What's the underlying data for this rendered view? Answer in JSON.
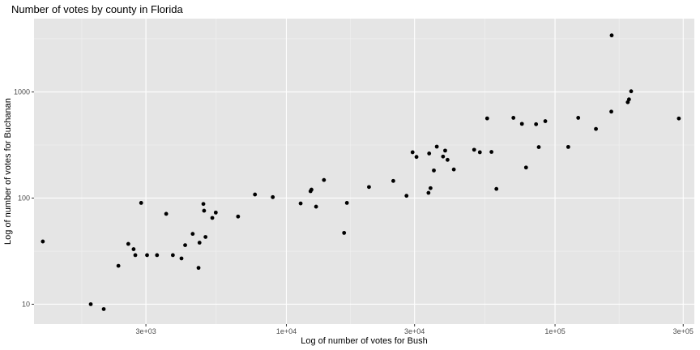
{
  "colors": {
    "panel": "#e5e5e5",
    "grid_major": "#ffffff",
    "grid_minor": "#f2f2f2",
    "point": "#000000",
    "tick": "#333333"
  },
  "chart_data": {
    "type": "scatter",
    "title": "Number of votes by county in Florida",
    "xlabel": "Log of number of votes for Bush",
    "ylabel": "Log of number of votes for Buchanan",
    "x_scale": "log10",
    "y_scale": "log10",
    "xlim": [
      1150,
      330000
    ],
    "ylim": [
      6.5,
      4900
    ],
    "grid": true,
    "x_ticks": [
      {
        "value": 3000,
        "label": "3e+03"
      },
      {
        "value": 10000,
        "label": "1e+04"
      },
      {
        "value": 30000,
        "label": "3e+04"
      },
      {
        "value": 100000,
        "label": "1e+05"
      },
      {
        "value": 300000,
        "label": "3e+05"
      }
    ],
    "y_ticks": [
      {
        "value": 10,
        "label": "10"
      },
      {
        "value": 100,
        "label": "100"
      },
      {
        "value": 1000,
        "label": "1000"
      }
    ],
    "x_minor_grid": [
      1732,
      5477,
      17320,
      54770,
      173200
    ],
    "y_minor_grid": [
      31.6,
      316,
      3162
    ],
    "points": [
      [
        1240,
        39
      ],
      [
        1870,
        10
      ],
      [
        2090,
        9
      ],
      [
        2370,
        23
      ],
      [
        2580,
        37
      ],
      [
        2700,
        33
      ],
      [
        2740,
        29
      ],
      [
        3030,
        29
      ],
      [
        2880,
        90
      ],
      [
        3300,
        29
      ],
      [
        3570,
        71
      ],
      [
        3780,
        29
      ],
      [
        4070,
        27
      ],
      [
        4200,
        36
      ],
      [
        4480,
        46
      ],
      [
        4710,
        22
      ],
      [
        4750,
        38
      ],
      [
        4910,
        88
      ],
      [
        4940,
        76
      ],
      [
        5000,
        43
      ],
      [
        5300,
        65
      ],
      [
        5460,
        73
      ],
      [
        6610,
        67
      ],
      [
        7640,
        108
      ],
      [
        8900,
        102
      ],
      [
        11300,
        89
      ],
      [
        12300,
        116
      ],
      [
        12400,
        120
      ],
      [
        12900,
        83
      ],
      [
        13800,
        148
      ],
      [
        16400,
        47
      ],
      [
        16800,
        90
      ],
      [
        20300,
        127
      ],
      [
        25000,
        145
      ],
      [
        28000,
        105
      ],
      [
        29500,
        270
      ],
      [
        30500,
        244
      ],
      [
        33800,
        112
      ],
      [
        34000,
        263
      ],
      [
        34400,
        124
      ],
      [
        35400,
        182
      ],
      [
        36300,
        305
      ],
      [
        38300,
        246
      ],
      [
        39000,
        280
      ],
      [
        39800,
        229
      ],
      [
        42000,
        186
      ],
      [
        50000,
        285
      ],
      [
        52500,
        270
      ],
      [
        55900,
        563
      ],
      [
        58000,
        272
      ],
      [
        60500,
        122
      ],
      [
        70000,
        570
      ],
      [
        75300,
        500
      ],
      [
        78000,
        194
      ],
      [
        85000,
        496
      ],
      [
        87000,
        302
      ],
      [
        92000,
        530
      ],
      [
        112000,
        303
      ],
      [
        122000,
        570
      ],
      [
        142000,
        448
      ],
      [
        162500,
        3407
      ],
      [
        162000,
        652
      ],
      [
        186500,
        800
      ],
      [
        188500,
        850
      ],
      [
        192000,
        1013
      ],
      [
        289000,
        562
      ]
    ]
  }
}
